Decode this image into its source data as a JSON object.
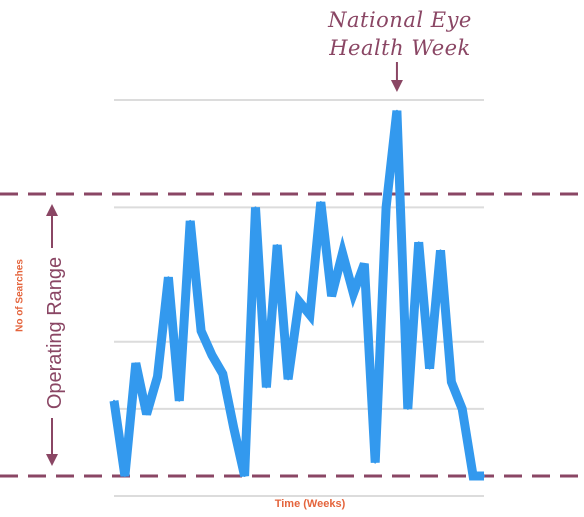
{
  "chart_data": {
    "type": "line",
    "title": "",
    "xlabel": "Time (Weeks)",
    "ylabel": "No of Searches",
    "grid": true,
    "x": [
      0,
      1,
      2,
      3,
      4,
      5,
      6,
      7,
      8,
      9,
      10,
      11,
      12,
      13,
      14,
      15,
      16,
      17,
      18,
      19,
      20,
      21,
      22,
      23,
      24,
      25,
      26,
      27,
      28,
      29,
      30,
      31,
      32,
      33,
      34
    ],
    "series": [
      {
        "color": "#3399ee",
        "values": [
          28,
          0,
          42,
          23,
          37,
          74,
          28,
          95,
          54,
          45,
          38,
          18,
          0,
          100,
          33,
          86,
          36,
          65,
          60,
          102,
          67,
          83,
          68,
          79,
          5,
          100,
          136,
          25,
          87,
          40,
          84,
          35,
          25,
          0,
          0
        ]
      }
    ],
    "ylim": [
      0,
      140
    ],
    "gridlines": [
      25,
      50,
      100,
      140
    ],
    "operating_range": [
      0,
      105
    ],
    "operating_range_label": "Operating Range",
    "annotation": {
      "line1": "National Eye",
      "line2": "Health Week"
    },
    "colors": {
      "line": "#3399ee",
      "dashed": "#8a4664",
      "grid": "#dcdcdc",
      "axis_label": "#e4643c"
    }
  }
}
